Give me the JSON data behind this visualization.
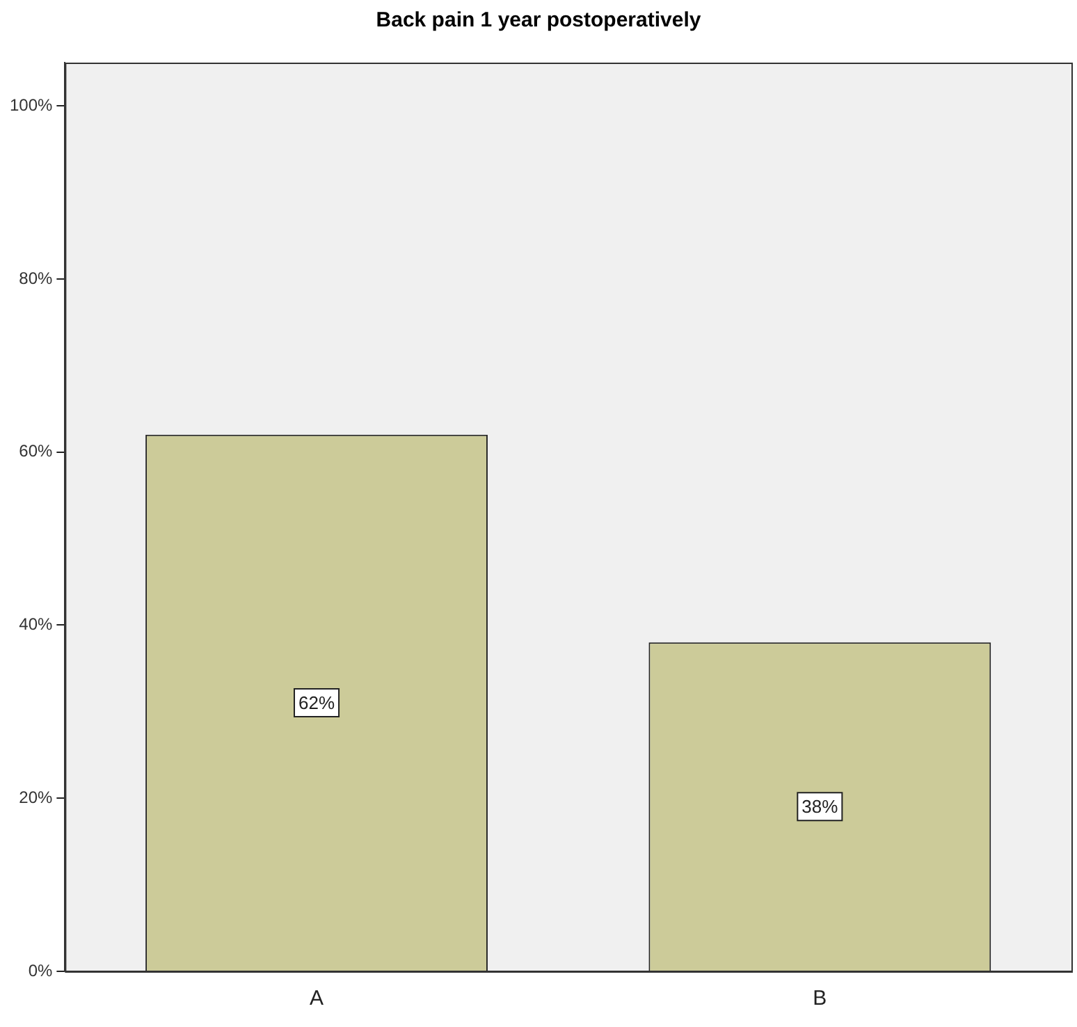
{
  "chart_data": {
    "type": "bar",
    "title": "Back pain 1 year postoperatively",
    "categories": [
      "A",
      "B"
    ],
    "values": [
      62,
      38
    ],
    "value_labels": [
      "62%",
      "38%"
    ],
    "color": "#cccb99",
    "ylim": [
      0,
      105
    ],
    "yticks": [
      {
        "value": 0,
        "label": "0%"
      },
      {
        "value": 20,
        "label": "20%"
      },
      {
        "value": 40,
        "label": "40%"
      },
      {
        "value": 60,
        "label": "60%"
      },
      {
        "value": 80,
        "label": "80%"
      },
      {
        "value": 100,
        "label": "100%"
      }
    ],
    "grid": false,
    "legend": false
  }
}
